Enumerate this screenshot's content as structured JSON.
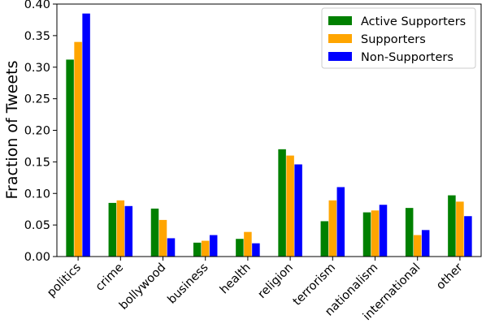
{
  "chart_data": {
    "type": "bar",
    "title": "",
    "xlabel": "",
    "ylabel": "Fraction of Tweets",
    "ylim": [
      0,
      0.4
    ],
    "yticks": [
      "0.00",
      "0.05",
      "0.10",
      "0.15",
      "0.20",
      "0.25",
      "0.30",
      "0.35",
      "0.40"
    ],
    "grid": false,
    "legend_position": "top-right",
    "categories": [
      "politics",
      "crime",
      "bollywood",
      "business",
      "health",
      "religion",
      "terrorism",
      "nationalism",
      "international",
      "other"
    ],
    "series": [
      {
        "name": "Active Supporters",
        "color": "#008000",
        "values": [
          0.312,
          0.085,
          0.076,
          0.022,
          0.028,
          0.17,
          0.056,
          0.07,
          0.077,
          0.097
        ]
      },
      {
        "name": "Supporters",
        "color": "#ffa500",
        "values": [
          0.34,
          0.089,
          0.058,
          0.025,
          0.039,
          0.16,
          0.089,
          0.073,
          0.034,
          0.087
        ]
      },
      {
        "name": "Non-Supporters",
        "color": "#0000ff",
        "values": [
          0.385,
          0.08,
          0.029,
          0.034,
          0.021,
          0.146,
          0.11,
          0.082,
          0.042,
          0.064
        ]
      }
    ]
  }
}
